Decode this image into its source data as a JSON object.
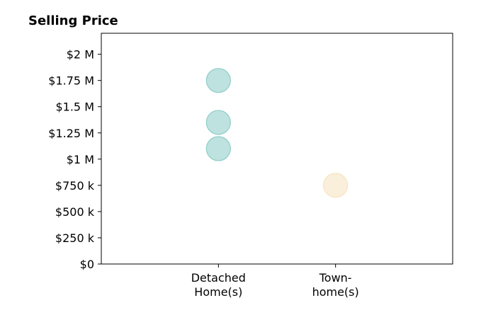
{
  "chart_data": {
    "type": "scatter",
    "title": "Selling Price",
    "xlabel": "",
    "ylabel": "",
    "categories": [
      "Detached Home(s)",
      "Town- home(s)"
    ],
    "category_label_lines": [
      [
        "Detached",
        "Home(s)"
      ],
      [
        "Town-",
        "home(s)"
      ]
    ],
    "y_ticks": [
      0,
      250000,
      500000,
      750000,
      1000000,
      1250000,
      1500000,
      1750000,
      2000000
    ],
    "y_tick_labels": [
      "$0",
      "$250 k",
      "$500 k",
      "$750 k",
      "$1 M",
      "$1.25 M",
      "$1.5 M",
      "$1.75 M",
      "$2 M"
    ],
    "ylim": [
      0,
      2200000
    ],
    "xlim": [
      -1,
      2
    ],
    "grid": false,
    "legend": "none",
    "points": [
      {
        "category": "Detached Home(s)",
        "y": 1750000
      },
      {
        "category": "Detached Home(s)",
        "y": 1350000
      },
      {
        "category": "Detached Home(s)",
        "y": 1100000
      },
      {
        "category": "Town- home(s)",
        "y": 750000
      }
    ],
    "colors": {
      "Detached Home(s)": "#8fcdc8",
      "Town- home(s)": "#f7e4c0"
    }
  }
}
